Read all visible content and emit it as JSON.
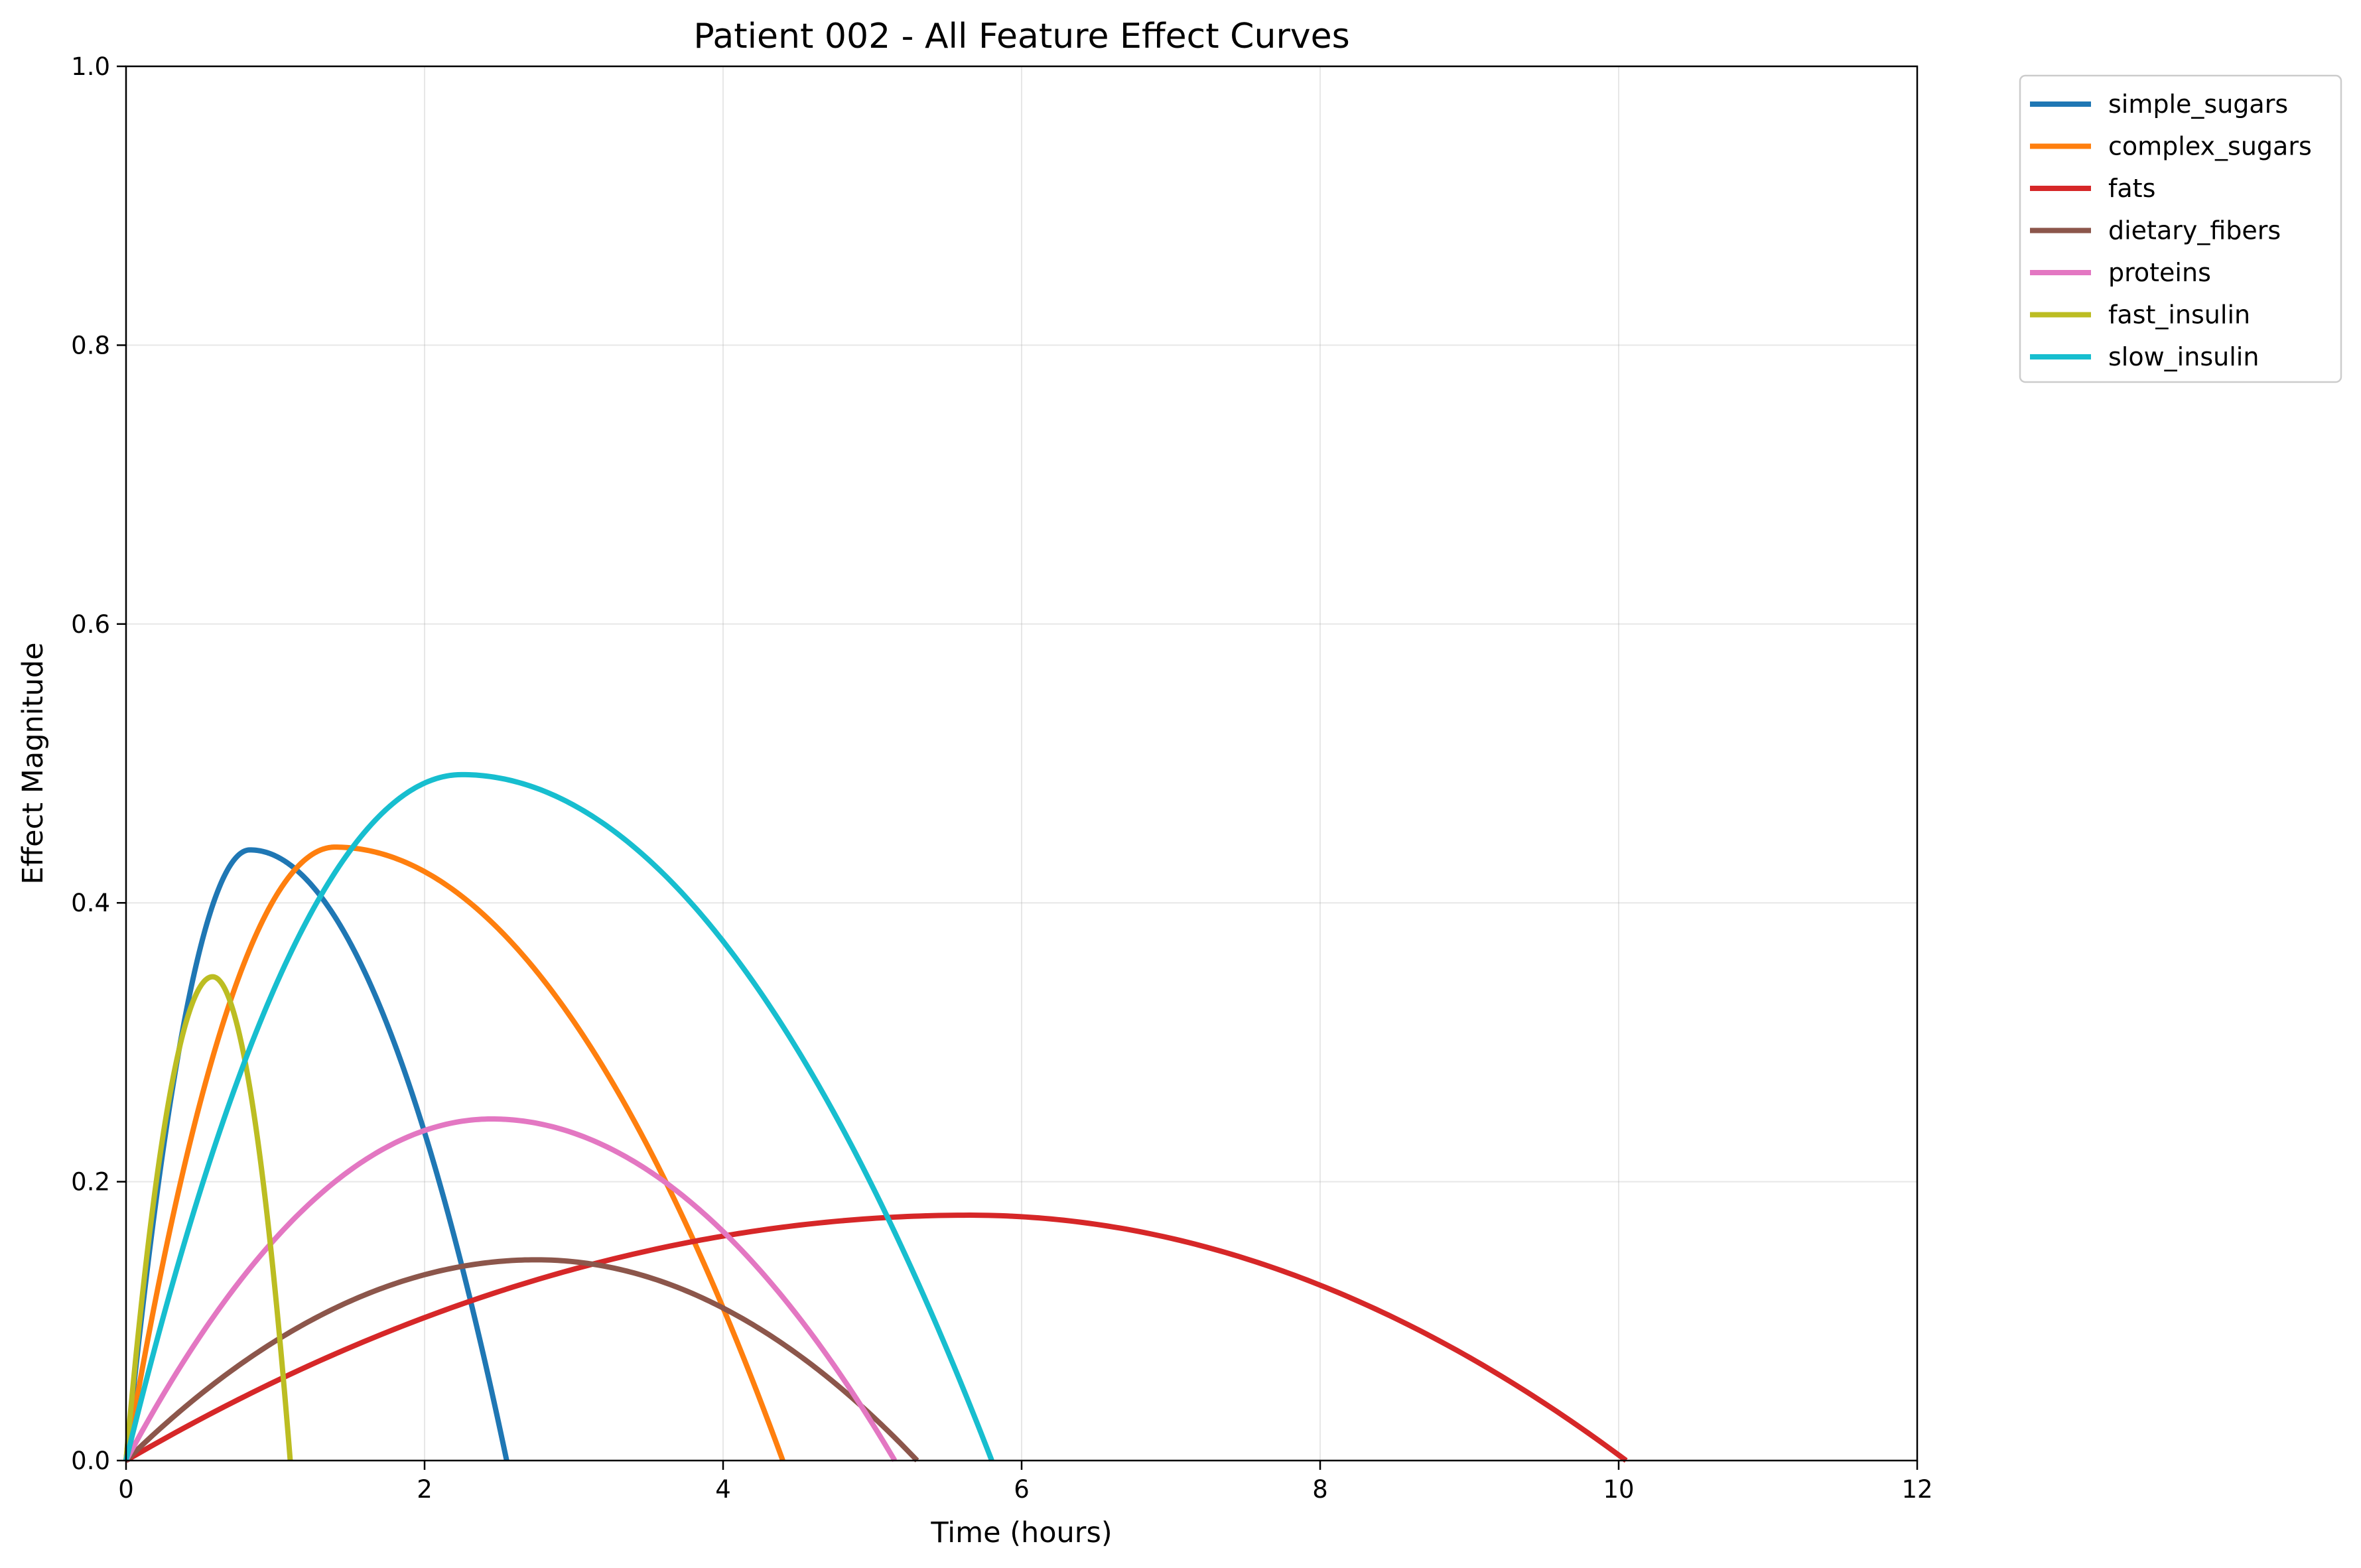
{
  "chart_data": {
    "type": "line",
    "title": "Patient 002 - All Feature Effect Curves",
    "xlabel": "Time (hours)",
    "ylabel": "Effect Magnitude",
    "xlim": [
      0,
      12
    ],
    "ylim": [
      0,
      1.0
    ],
    "xticks": [
      0,
      2,
      4,
      6,
      8,
      10,
      12
    ],
    "xtick_labels": [
      "0",
      "2",
      "4",
      "6",
      "8",
      "10",
      "12"
    ],
    "yticks": [
      0.0,
      0.2,
      0.4,
      0.6,
      0.8,
      1.0
    ],
    "ytick_labels": [
      "0.0",
      "0.2",
      "0.4",
      "0.6",
      "0.8",
      "1.0"
    ],
    "grid": true,
    "legend_position": "outside-top-right",
    "series": [
      {
        "name": "simple_sugars",
        "color": "#1f77b4",
        "peak_x": 0.83,
        "peak_y": 0.438,
        "end_x": 2.55
      },
      {
        "name": "complex_sugars",
        "color": "#ff7f0e",
        "peak_x": 1.4,
        "peak_y": 0.44,
        "end_x": 4.4
      },
      {
        "name": "fats",
        "color": "#d62728",
        "peak_x": 5.65,
        "peak_y": 0.176,
        "end_x": 10.05
      },
      {
        "name": "dietary_fibers",
        "color": "#8c564b",
        "peak_x": 2.75,
        "peak_y": 0.144,
        "end_x": 5.3
      },
      {
        "name": "proteins",
        "color": "#e377c2",
        "peak_x": 2.45,
        "peak_y": 0.245,
        "end_x": 5.15
      },
      {
        "name": "fast_insulin",
        "color": "#bcbd22",
        "peak_x": 0.58,
        "peak_y": 0.347,
        "end_x": 1.1
      },
      {
        "name": "slow_insulin",
        "color": "#17becf",
        "peak_x": 2.25,
        "peak_y": 0.492,
        "end_x": 5.8
      }
    ]
  }
}
